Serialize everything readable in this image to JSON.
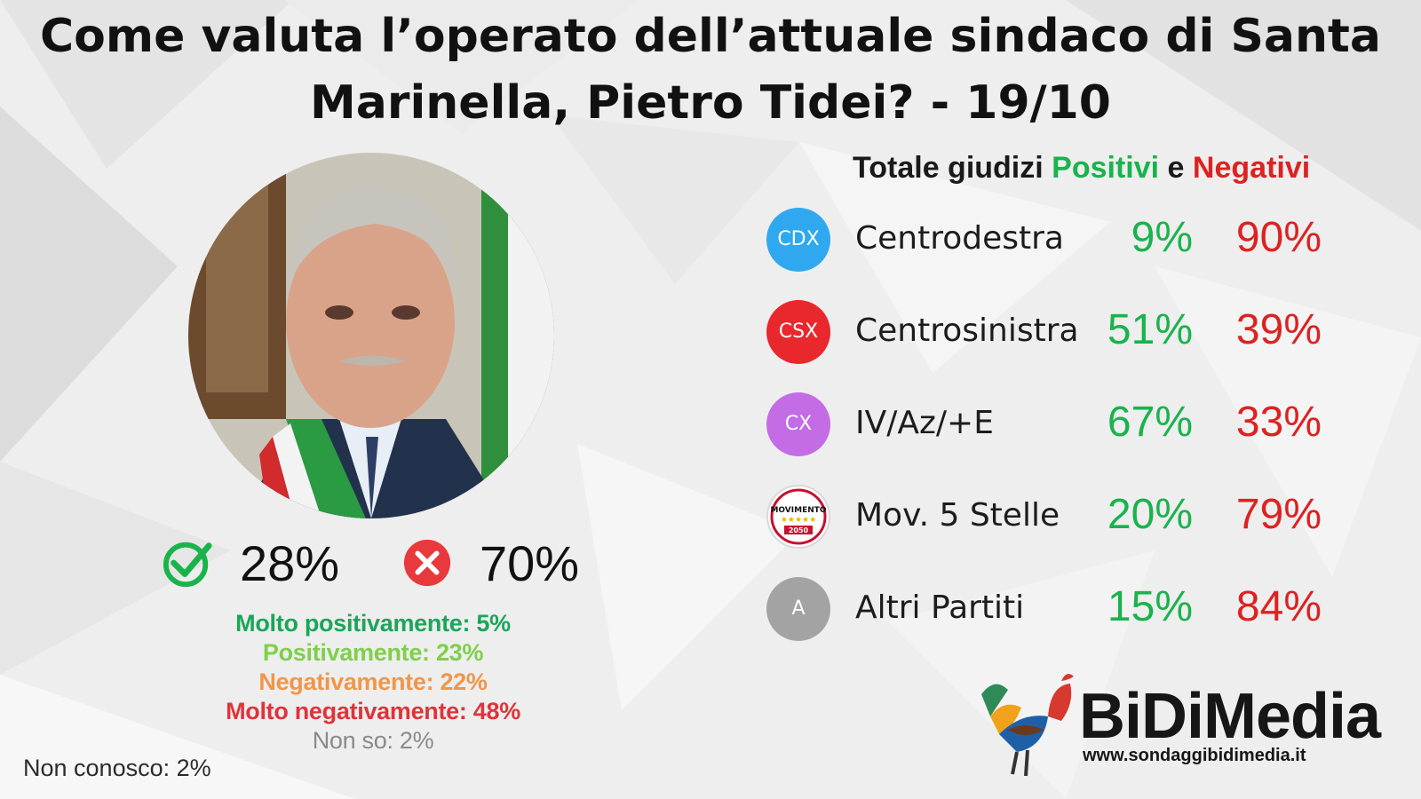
{
  "title": {
    "line1": "Come valuta l’operato dell’attuale sindaco di Santa",
    "line2": "Marinella, Pietro Tidei? - 19/10"
  },
  "colors": {
    "positive": "#19b34c",
    "negative": "#dd2222",
    "molto_positivamente": "#1aa65a",
    "positivamente": "#7fcf4a",
    "negativamente": "#f0964a",
    "molto_negativamente": "#e0333a"
  },
  "icons": {
    "positive": "check-circle-icon",
    "negative": "x-circle-icon"
  },
  "totals": {
    "positive": "28%",
    "negative": "70%"
  },
  "breakdown": {
    "molto_positivamente": "Molto positivamente: 5%",
    "positivamente": "Positivamente: 23%",
    "negativamente": "Negativamente: 22%",
    "molto_negativamente": "Molto negativamente: 48%",
    "non_so": "Non so: 2%",
    "non_conosco": "Non conosco: 2%"
  },
  "legend": {
    "prefix": "Totale giudizi",
    "positive_word": "Positivi",
    "conj": "e",
    "negative_word": "Negativi"
  },
  "chart_data": {
    "type": "table",
    "title": "Come valuta l’operato dell’attuale sindaco di Santa Marinella, Pietro Tidei? - 19/10",
    "overall": {
      "categories": [
        "Molto positivamente",
        "Positivamente",
        "Negativamente",
        "Molto negativamente",
        "Non so",
        "Non conosco"
      ],
      "values": [
        5,
        23,
        22,
        48,
        2,
        2
      ],
      "total_positive": 28,
      "total_negative": 70
    },
    "columns": [
      "Positivi",
      "Negativi"
    ],
    "rows": [
      {
        "badge": "CDX",
        "color": "#2fa8f0",
        "party": "Centrodestra",
        "positivi": "9%",
        "negativi": "90%"
      },
      {
        "badge": "CSX",
        "color": "#e8282c",
        "party": "Centrosinistra",
        "positivi": "51%",
        "negativi": "39%"
      },
      {
        "badge": "CX",
        "color": "#c46be6",
        "party": "IV/Az/+E",
        "positivi": "67%",
        "negativi": "33%"
      },
      {
        "badge": "MOVIMENTO 2050",
        "color": "#ffffff",
        "party": "Mov. 5 Stelle",
        "positivi": "20%",
        "negativi": "79%"
      },
      {
        "badge": "A",
        "color": "#a3a3a3",
        "party": "Altri Partiti",
        "positivi": "15%",
        "negativi": "84%"
      }
    ]
  },
  "logo": {
    "name": "BiDiMedia",
    "url": "www.sondaggibidimedia.it"
  }
}
